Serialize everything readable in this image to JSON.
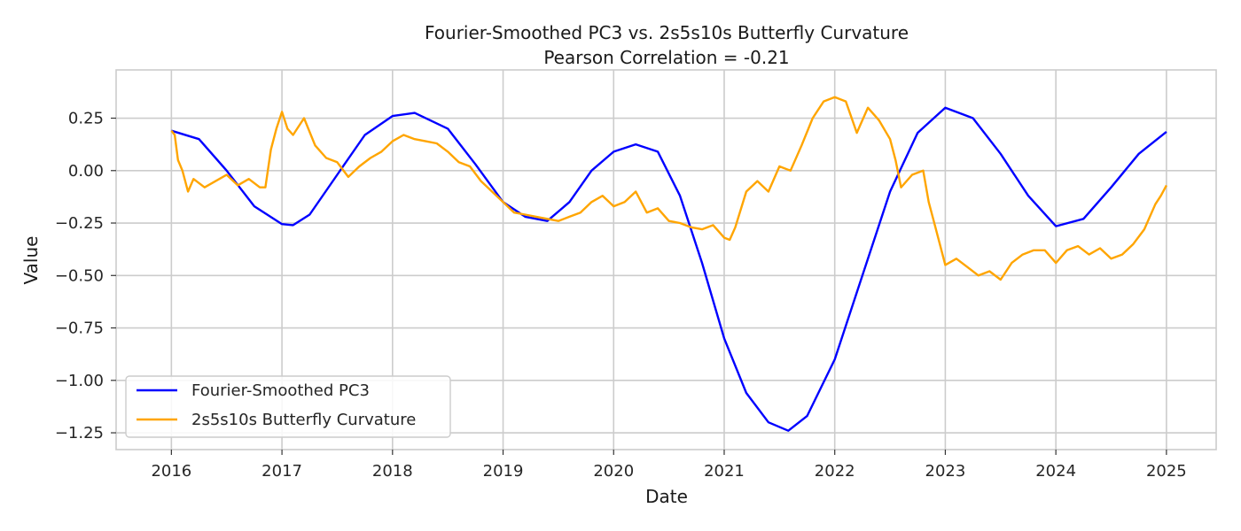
{
  "chart_data": {
    "type": "line",
    "title": "Fourier-Smoothed PC3 vs. 2s5s10s Butterfly Curvature",
    "subtitle": "Pearson Correlation = -0.21",
    "xlabel": "Date",
    "ylabel": "Value",
    "x_tick_labels": [
      "2016",
      "2017",
      "2018",
      "2019",
      "2020",
      "2021",
      "2022",
      "2023",
      "2024",
      "2025"
    ],
    "y_ticks": [
      0.25,
      0.0,
      -0.25,
      -0.5,
      -0.75,
      -1.0,
      -1.25
    ],
    "y_tick_labels": [
      "0.25",
      "0.00",
      "−0.25",
      "−0.50",
      "−0.75",
      "−1.00",
      "−1.25"
    ],
    "xlim": [
      2015.5,
      2025.45
    ],
    "ylim": [
      -1.33,
      0.48
    ],
    "grid": true,
    "legend_position": "lower-left",
    "series": [
      {
        "name": "Fourier-Smoothed PC3",
        "color": "#0000ff",
        "x": [
          2016.0,
          2016.25,
          2016.5,
          2016.75,
          2017.0,
          2017.1,
          2017.25,
          2017.5,
          2017.75,
          2018.0,
          2018.2,
          2018.5,
          2018.75,
          2019.0,
          2019.2,
          2019.4,
          2019.6,
          2019.8,
          2020.0,
          2020.2,
          2020.4,
          2020.6,
          2020.8,
          2021.0,
          2021.2,
          2021.4,
          2021.58,
          2021.75,
          2022.0,
          2022.25,
          2022.5,
          2022.75,
          2023.0,
          2023.25,
          2023.5,
          2023.75,
          2024.0,
          2024.25,
          2024.5,
          2024.75,
          2025.0
        ],
        "y": [
          0.19,
          0.15,
          0.0,
          -0.17,
          -0.255,
          -0.26,
          -0.21,
          -0.02,
          0.17,
          0.26,
          0.275,
          0.2,
          0.03,
          -0.15,
          -0.22,
          -0.24,
          -0.15,
          0.0,
          0.09,
          0.125,
          0.09,
          -0.12,
          -0.44,
          -0.8,
          -1.06,
          -1.2,
          -1.24,
          -1.17,
          -0.9,
          -0.5,
          -0.1,
          0.18,
          0.3,
          0.25,
          0.08,
          -0.12,
          -0.265,
          -0.23,
          -0.08,
          0.08,
          0.185
        ]
      },
      {
        "name": "2s5s10s Butterfly Curvature",
        "color": "#ffa500",
        "x": [
          2016.0,
          2016.03,
          2016.06,
          2016.1,
          2016.15,
          2016.2,
          2016.3,
          2016.4,
          2016.5,
          2016.6,
          2016.7,
          2016.8,
          2016.85,
          2016.9,
          2016.95,
          2017.0,
          2017.05,
          2017.1,
          2017.2,
          2017.3,
          2017.4,
          2017.5,
          2017.6,
          2017.7,
          2017.8,
          2017.9,
          2018.0,
          2018.1,
          2018.2,
          2018.3,
          2018.4,
          2018.5,
          2018.6,
          2018.7,
          2018.8,
          2018.9,
          2019.0,
          2019.1,
          2019.2,
          2019.3,
          2019.4,
          2019.5,
          2019.6,
          2019.7,
          2019.8,
          2019.9,
          2020.0,
          2020.1,
          2020.2,
          2020.3,
          2020.4,
          2020.5,
          2020.6,
          2020.7,
          2020.8,
          2020.9,
          2021.0,
          2021.05,
          2021.1,
          2021.2,
          2021.3,
          2021.4,
          2021.5,
          2021.6,
          2021.7,
          2021.8,
          2021.9,
          2022.0,
          2022.1,
          2022.2,
          2022.3,
          2022.4,
          2022.5,
          2022.55,
          2022.6,
          2022.7,
          2022.8,
          2022.85,
          2022.9,
          2022.95,
          2023.0,
          2023.1,
          2023.2,
          2023.3,
          2023.4,
          2023.5,
          2023.6,
          2023.7,
          2023.8,
          2023.9,
          2024.0,
          2024.1,
          2024.2,
          2024.3,
          2024.4,
          2024.5,
          2024.6,
          2024.7,
          2024.8,
          2024.9,
          2024.95,
          2025.0
        ],
        "y": [
          0.19,
          0.17,
          0.05,
          0.0,
          -0.1,
          -0.04,
          -0.08,
          -0.05,
          -0.02,
          -0.07,
          -0.04,
          -0.08,
          -0.08,
          0.1,
          0.2,
          0.28,
          0.2,
          0.17,
          0.25,
          0.12,
          0.06,
          0.04,
          -0.03,
          0.02,
          0.06,
          0.09,
          0.14,
          0.17,
          0.15,
          0.14,
          0.13,
          0.09,
          0.04,
          0.02,
          -0.05,
          -0.1,
          -0.15,
          -0.2,
          -0.21,
          -0.22,
          -0.23,
          -0.24,
          -0.22,
          -0.2,
          -0.15,
          -0.12,
          -0.17,
          -0.15,
          -0.1,
          -0.2,
          -0.18,
          -0.24,
          -0.25,
          -0.27,
          -0.28,
          -0.26,
          -0.32,
          -0.33,
          -0.27,
          -0.1,
          -0.05,
          -0.1,
          0.02,
          0.0,
          0.12,
          0.25,
          0.33,
          0.35,
          0.33,
          0.18,
          0.3,
          0.24,
          0.15,
          0.05,
          -0.08,
          -0.02,
          0.0,
          -0.15,
          -0.25,
          -0.35,
          -0.45,
          -0.42,
          -0.46,
          -0.5,
          -0.48,
          -0.52,
          -0.44,
          -0.4,
          -0.38,
          -0.38,
          -0.44,
          -0.38,
          -0.36,
          -0.4,
          -0.37,
          -0.42,
          -0.4,
          -0.35,
          -0.28,
          -0.16,
          -0.12,
          -0.07
        ]
      }
    ]
  }
}
